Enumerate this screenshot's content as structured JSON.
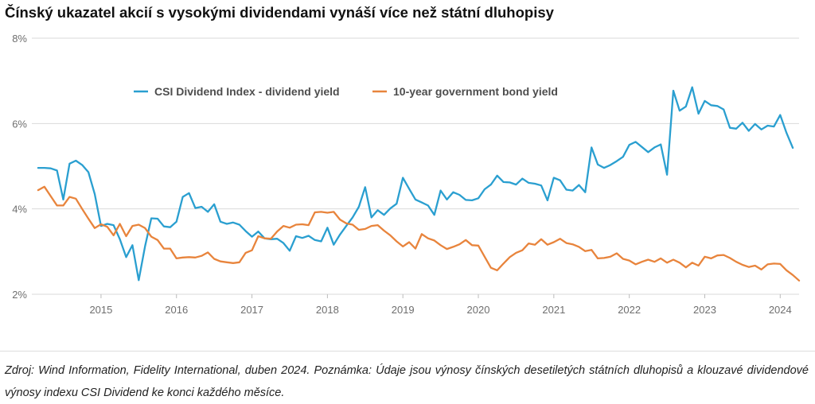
{
  "title": "Čínský ukazatel akcií s vysokými dividendami vynáší více než státní dluhopisy",
  "footer_text": "Zdroj: Wind Information, Fidelity International, duben 2024. Poznámka: Údaje jsou výnosy čínských desetiletých státních dluhopisů a klouzavé dividendové výnosy indexu CSI Dividend ke konci každého měsíce.",
  "chart_data": {
    "type": "line",
    "title": "Čínský ukazatel akcií s vysokými dividendami vynáší více než státní dluhopisy",
    "xlabel": "",
    "ylabel": "",
    "x_axis_kind": "monthly",
    "x_start": "2014-03",
    "x_end": "2024-03",
    "xlim": [
      "2014-02",
      "2024-04"
    ],
    "ylim": [
      2,
      8
    ],
    "y_ticks": [
      2,
      4,
      6,
      8
    ],
    "y_tick_labels": [
      "2%",
      "4%",
      "6%",
      "8%"
    ],
    "x_tick_labels": [
      "2015",
      "2016",
      "2017",
      "2018",
      "2019",
      "2020",
      "2021",
      "2022",
      "2023",
      "2024"
    ],
    "grid": true,
    "legend_position": "top-center",
    "series": [
      {
        "name": "CSI Dividend Index - dividend yield",
        "color": "#2a9fd0",
        "values": [
          4.96,
          4.96,
          4.95,
          4.9,
          4.22,
          5.06,
          5.13,
          5.03,
          4.86,
          4.35,
          3.6,
          3.65,
          3.62,
          3.29,
          2.87,
          3.15,
          2.33,
          3.12,
          3.78,
          3.77,
          3.59,
          3.57,
          3.7,
          4.28,
          4.37,
          4.02,
          4.05,
          3.93,
          4.11,
          3.7,
          3.65,
          3.68,
          3.63,
          3.48,
          3.35,
          3.47,
          3.31,
          3.29,
          3.3,
          3.2,
          3.02,
          3.36,
          3.32,
          3.37,
          3.27,
          3.24,
          3.56,
          3.16,
          3.4,
          3.6,
          3.8,
          4.05,
          4.51,
          3.8,
          3.97,
          3.86,
          4.01,
          4.12,
          4.73,
          4.47,
          4.22,
          4.15,
          4.08,
          3.86,
          4.43,
          4.22,
          4.39,
          4.33,
          4.21,
          4.2,
          4.25,
          4.46,
          4.57,
          4.78,
          4.63,
          4.62,
          4.57,
          4.71,
          4.61,
          4.59,
          4.55,
          4.2,
          4.73,
          4.67,
          4.45,
          4.43,
          4.56,
          4.39,
          5.44,
          5.04,
          4.96,
          5.03,
          5.12,
          5.22,
          5.5,
          5.57,
          5.45,
          5.33,
          5.44,
          5.51,
          4.8,
          6.77,
          6.3,
          6.4,
          6.85,
          6.23,
          6.53,
          6.43,
          6.41,
          6.33,
          5.9,
          5.88,
          6.02,
          5.83,
          5.99,
          5.86,
          5.95,
          5.93,
          6.2,
          5.78,
          5.43
        ]
      },
      {
        "name": "10-year government bond yield",
        "color": "#e8843c",
        "values": [
          4.44,
          4.52,
          4.3,
          4.08,
          4.08,
          4.28,
          4.24,
          4.0,
          3.77,
          3.55,
          3.64,
          3.58,
          3.38,
          3.65,
          3.36,
          3.6,
          3.63,
          3.55,
          3.35,
          3.27,
          3.07,
          3.07,
          2.84,
          2.86,
          2.87,
          2.86,
          2.9,
          2.98,
          2.83,
          2.77,
          2.75,
          2.73,
          2.75,
          2.97,
          3.03,
          3.36,
          3.31,
          3.3,
          3.47,
          3.6,
          3.56,
          3.63,
          3.64,
          3.62,
          3.92,
          3.93,
          3.91,
          3.93,
          3.75,
          3.66,
          3.63,
          3.51,
          3.53,
          3.6,
          3.62,
          3.49,
          3.38,
          3.24,
          3.12,
          3.22,
          3.07,
          3.41,
          3.31,
          3.26,
          3.15,
          3.06,
          3.11,
          3.17,
          3.27,
          3.15,
          3.14,
          2.88,
          2.62,
          2.56,
          2.72,
          2.87,
          2.97,
          3.03,
          3.19,
          3.16,
          3.29,
          3.16,
          3.22,
          3.3,
          3.2,
          3.17,
          3.11,
          3.01,
          3.04,
          2.84,
          2.85,
          2.88,
          2.96,
          2.83,
          2.79,
          2.7,
          2.76,
          2.81,
          2.76,
          2.84,
          2.74,
          2.81,
          2.74,
          2.63,
          2.74,
          2.67,
          2.88,
          2.84,
          2.91,
          2.92,
          2.85,
          2.76,
          2.69,
          2.64,
          2.67,
          2.58,
          2.7,
          2.72,
          2.71,
          2.56,
          2.45,
          2.32
        ]
      }
    ]
  }
}
